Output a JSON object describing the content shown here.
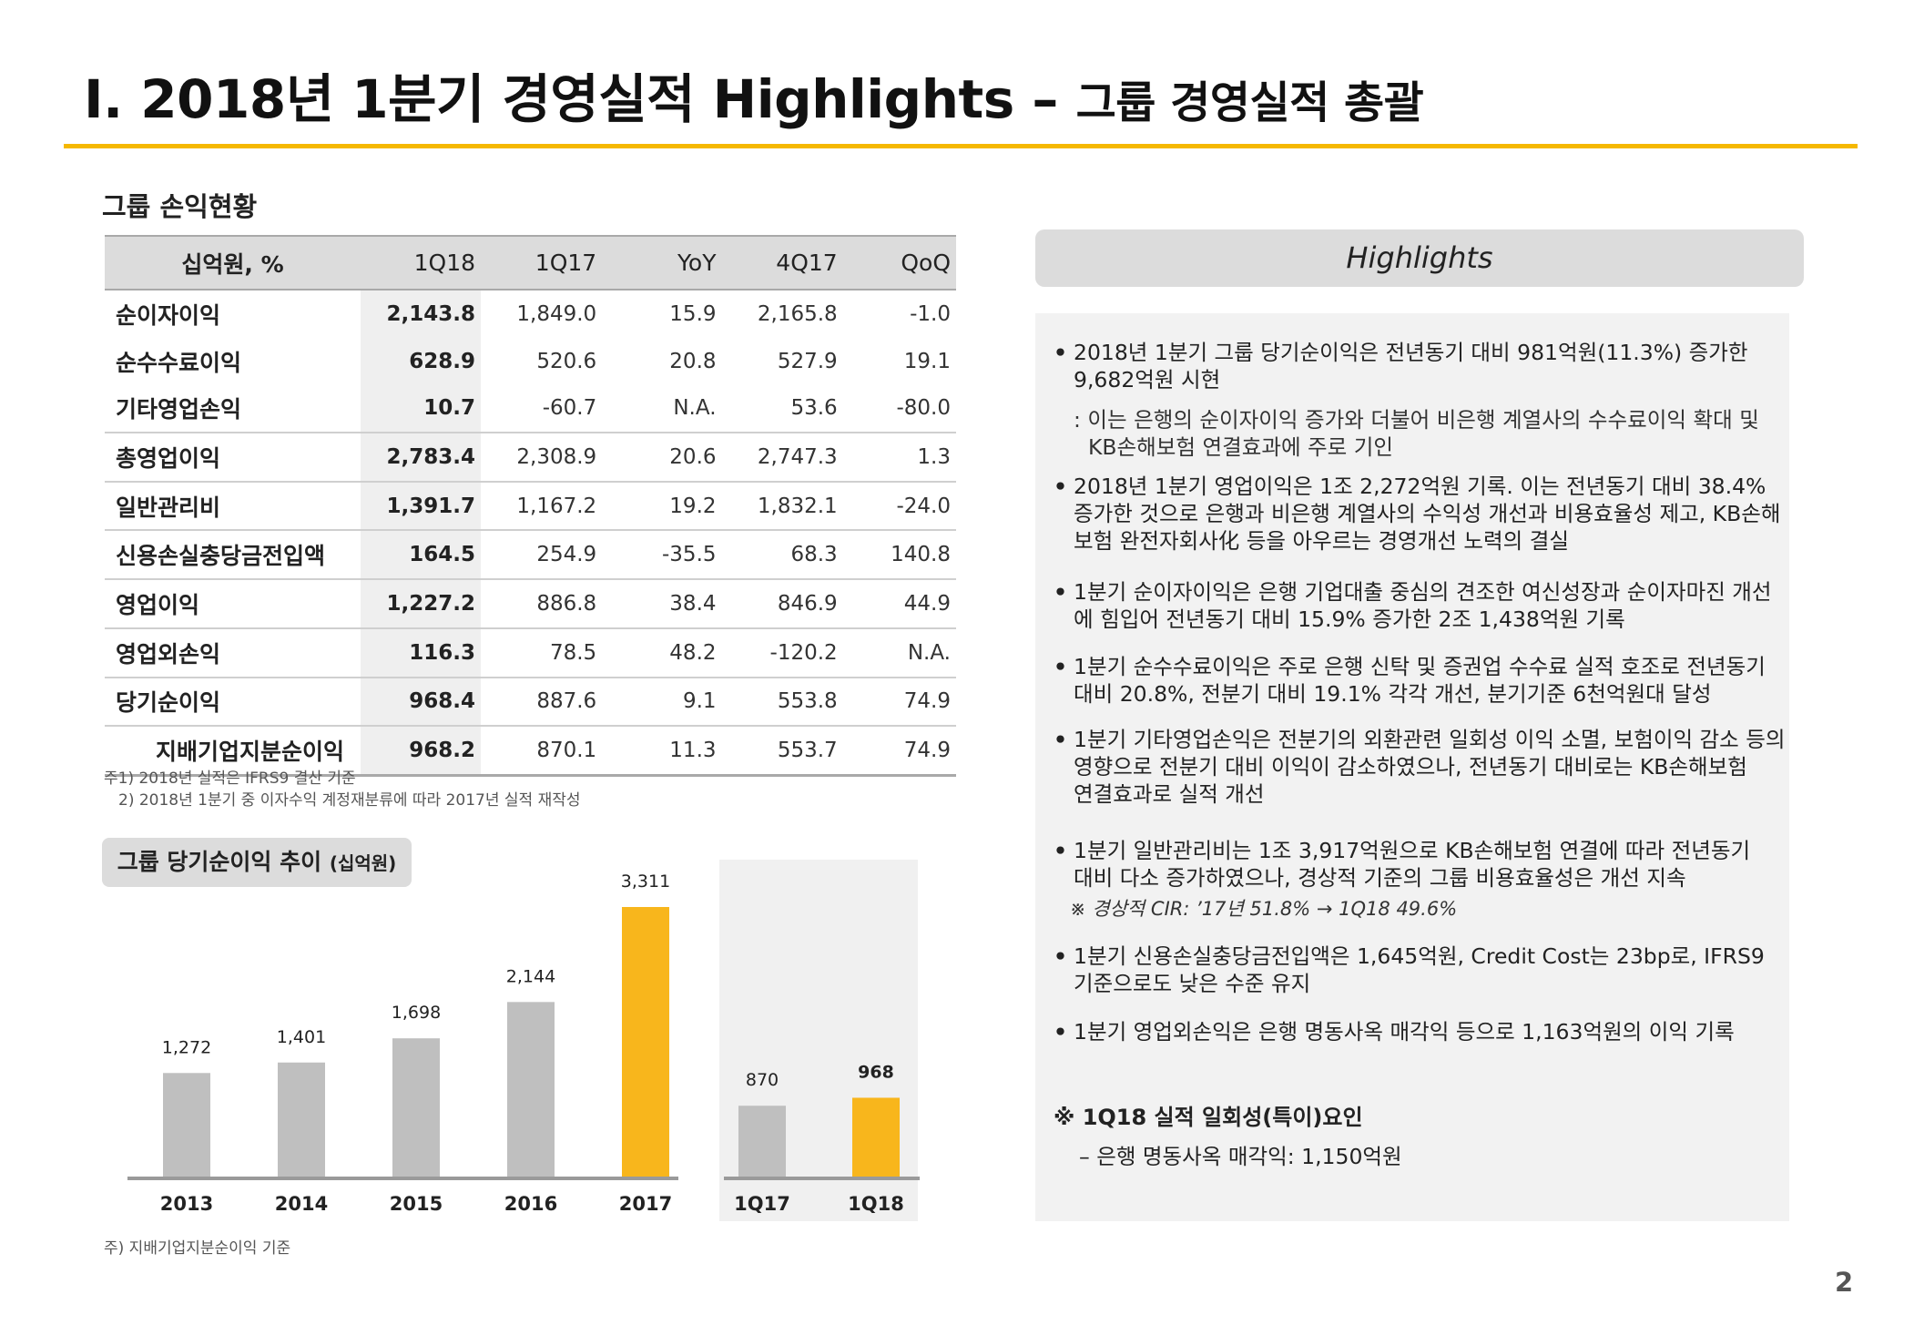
{
  "title": {
    "main": "I. 2018년 1분기 경영실적 Highlights",
    "dash": " – ",
    "sub": "그룹 경영실적 총괄"
  },
  "table_section": {
    "title": "그룹 손익현황",
    "columns": [
      "십억원, %",
      "1Q18",
      "1Q17",
      "YoY",
      "4Q17",
      "QoQ"
    ],
    "rows": [
      {
        "label": "순이자이익",
        "values": [
          "2,143.8",
          "1,849.0",
          "15.9",
          "2,165.8",
          "-1.0"
        ]
      },
      {
        "label": "순수수료이익",
        "values": [
          "628.9",
          "520.6",
          "20.8",
          "527.9",
          "19.1"
        ]
      },
      {
        "label": "기타영업손익",
        "values": [
          "10.7",
          "-60.7",
          "N.A.",
          "53.6",
          "-80.0"
        ]
      },
      {
        "label": "총영업이익",
        "values": [
          "2,783.4",
          "2,308.9",
          "20.6",
          "2,747.3",
          "1.3"
        ]
      },
      {
        "label": "일반관리비",
        "values": [
          "1,391.7",
          "1,167.2",
          "19.2",
          "1,832.1",
          "-24.0"
        ]
      },
      {
        "label": "신용손실충당금전입액",
        "values": [
          "164.5",
          "254.9",
          "-35.5",
          "68.3",
          "140.8"
        ]
      },
      {
        "label": "영업이익",
        "values": [
          "1,227.2",
          "886.8",
          "38.4",
          "846.9",
          "44.9"
        ]
      },
      {
        "label": "영업외손익",
        "values": [
          "116.3",
          "78.5",
          "48.2",
          "-120.2",
          "N.A."
        ]
      },
      {
        "label": "당기순이익",
        "values": [
          "968.4",
          "887.6",
          "9.1",
          "553.8",
          "74.9"
        ]
      },
      {
        "label": "지배기업지분순이익",
        "values": [
          "968.2",
          "870.1",
          "11.3",
          "553.7",
          "74.9"
        ]
      }
    ],
    "notes": [
      "주1) 2018년 실적은 IFRS9 결산 기준",
      "2) 2018년 1분기 중 이자수익 계정재분류에 따라 2017년 실적 재작성"
    ]
  },
  "chart_section": {
    "title": "그룹 당기순이익 추이",
    "unit": "(십억원)",
    "note": "주) 지배기업지분순이익 기준"
  },
  "chart_data": {
    "type": "bar",
    "categories": [
      "2013",
      "2014",
      "2015",
      "2016",
      "2017",
      "1Q17",
      "1Q18"
    ],
    "values": [
      1272,
      1401,
      1698,
      2144,
      3311,
      870,
      968
    ],
    "labels": [
      "1,272",
      "1,401",
      "1,698",
      "2,144",
      "3,311",
      "870",
      "968"
    ],
    "highlight": [
      "2017",
      "1Q18"
    ],
    "colors": {
      "normal": "#BFBFBF",
      "highlight": "#F8B61C"
    }
  },
  "highlights": {
    "title": "Highlights",
    "items": [
      {
        "lines": [
          "2018년 1분기 그룹 당기순이익은 전년동기 대비 981억원(11.3%) 증가한",
          "9,682억원 시현"
        ],
        "sub": [
          ": 이는 은행의 순이자이익 증가와 더불어 비은행 계열사의 수수료이익 확대 및",
          "KB손해보험 연결효과에 주로 기인"
        ]
      },
      {
        "lines": [
          "2018년 1분기 영업이익은 1조 2,272억원 기록. 이는 전년동기 대비 38.4%",
          "증가한 것으로 은행과 비은행 계열사의 수익성 개선과 비용효율성 제고, KB손해",
          "보험 완전자회사化 등을 아우르는 경영개선 노력의 결실"
        ]
      },
      {
        "lines": [
          "1분기 순이자이익은 은행 기업대출 중심의 견조한 여신성장과 순이자마진 개선",
          "에 힘입어 전년동기 대비 15.9% 증가한 2조 1,438억원 기록"
        ]
      },
      {
        "lines": [
          "1분기 순수수료이익은 주로 은행 신탁 및 증권업 수수료 실적 호조로 전년동기",
          "대비 20.8%, 전분기 대비 19.1% 각각 개선, 분기기준 6천억원대 달성"
        ]
      },
      {
        "lines": [
          "1분기 기타영업손익은 전분기의 외환관련 일회성 이익 소멸, 보험이익 감소 등의",
          "영향으로 전분기 대비 이익이 감소하였으나, 전년동기 대비로는 KB손해보험",
          "연결효과로 실적 개선"
        ]
      },
      {
        "lines": [
          "1분기 일반관리비는 1조 3,917억원으로 KB손해보험 연결에 따라 전년동기",
          "대비 다소 증가하였으나, 경상적 기준의 그룹 비용효율성은 개선 지속"
        ],
        "cir": "※ 경상적 CIR: ’17년 51.8% → 1Q18 49.6%"
      },
      {
        "lines": [
          "1분기 신용손실충당금전입액은 1,645억원, Credit Cost는 23bp로, IFRS9",
          "기준으로도 낮은 수준 유지"
        ]
      },
      {
        "lines": [
          "1분기 영업외손익은 은행 명동사옥 매각익 등으로 1,163억원의 이익 기록"
        ]
      }
    ],
    "special_title": "※ 1Q18 실적 일회성(특이)요인",
    "special_item": "–   은행 명동사옥 매각익: 1,150억원"
  },
  "page_number": "2"
}
